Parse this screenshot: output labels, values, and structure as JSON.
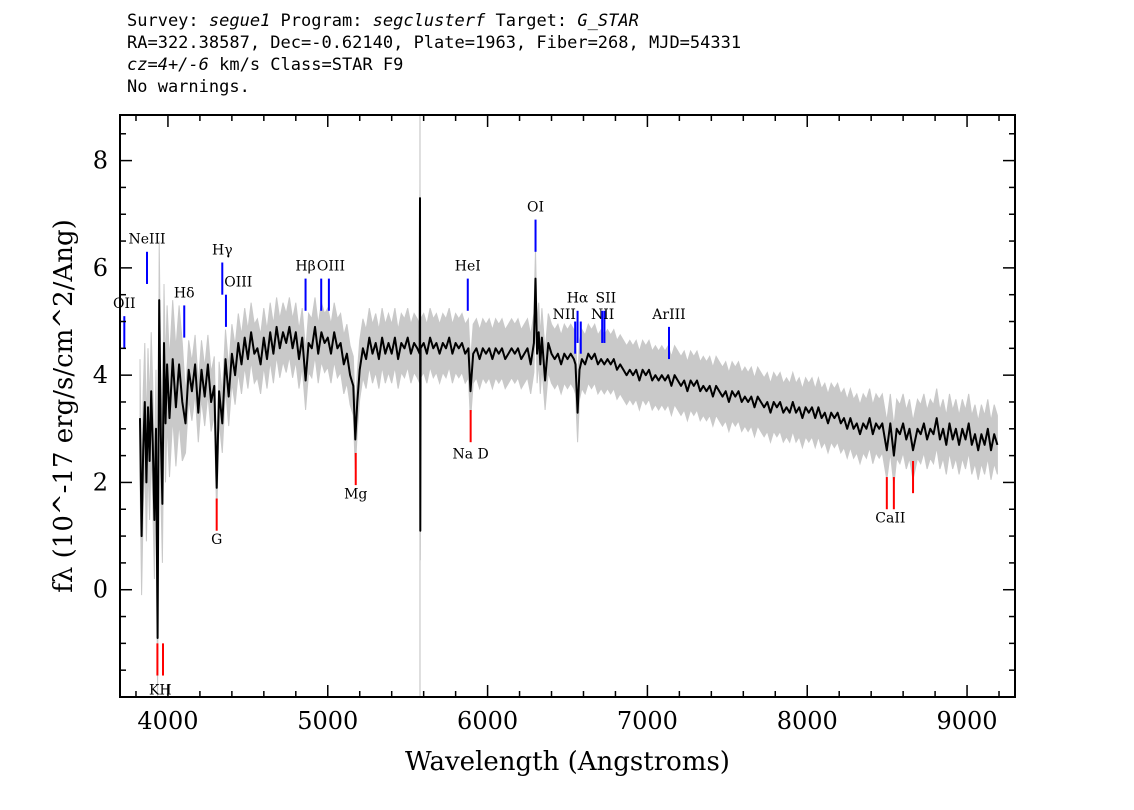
{
  "header": {
    "line1_prefix": "Survey: ",
    "survey": "segue1",
    "line1_mid": " Program: ",
    "program": "segclusterf",
    "line1_mid2": " Target: ",
    "target": "G_STAR",
    "line2": "RA=322.38587, Dec=-0.62140, Plate=1963, Fiber=268, MJD=54331",
    "line3_z": "cz=4+/-6",
    "line3_rest": " km/s Class=STAR F9",
    "line4": "No warnings."
  },
  "chart_data": {
    "type": "line",
    "xlabel": "Wavelength (Angstroms)",
    "ylabel": "fλ (10^-17 erg/s/cm^2/Ang)",
    "xlim": [
      3700,
      9300
    ],
    "ylim": [
      -2.0,
      8.85
    ],
    "x_ticks": [
      4000,
      5000,
      6000,
      7000,
      8000,
      9000
    ],
    "y_ticks": [
      0,
      2,
      4,
      6,
      8
    ],
    "x_tick_labels": [
      "4000",
      "5000",
      "6000",
      "7000",
      "8000",
      "9000"
    ],
    "y_tick_labels": [
      "0",
      "2",
      "4",
      "6",
      "8"
    ],
    "spectrum_color": "#000000",
    "error_color": "#c0c0c0",
    "emission_line_color": "#0000ff",
    "absorption_line_color": "#ff0000",
    "spectrum_points": [
      [
        3825,
        3.2
      ],
      [
        3835,
        1.0
      ],
      [
        3845,
        2.6
      ],
      [
        3855,
        3.5
      ],
      [
        3865,
        2.0
      ],
      [
        3875,
        3.4
      ],
      [
        3885,
        2.4
      ],
      [
        3895,
        3.7
      ],
      [
        3905,
        2.7
      ],
      [
        3915,
        1.3
      ],
      [
        3925,
        3.0
      ],
      [
        3935,
        -0.9
      ],
      [
        3945,
        5.4
      ],
      [
        3955,
        2.9
      ],
      [
        3965,
        1.6
      ],
      [
        3975,
        4.6
      ],
      [
        3985,
        3.1
      ],
      [
        3995,
        4.2
      ],
      [
        4010,
        3.2
      ],
      [
        4030,
        4.3
      ],
      [
        4050,
        3.4
      ],
      [
        4070,
        4.2
      ],
      [
        4090,
        3.5
      ],
      [
        4110,
        3.1
      ],
      [
        4130,
        4.1
      ],
      [
        4150,
        3.7
      ],
      [
        4170,
        4.2
      ],
      [
        4190,
        3.3
      ],
      [
        4210,
        4.1
      ],
      [
        4230,
        3.6
      ],
      [
        4250,
        4.2
      ],
      [
        4270,
        3.5
      ],
      [
        4290,
        3.8
      ],
      [
        4305,
        1.9
      ],
      [
        4320,
        3.7
      ],
      [
        4340,
        3.1
      ],
      [
        4360,
        4.3
      ],
      [
        4380,
        3.6
      ],
      [
        4400,
        4.4
      ],
      [
        4420,
        4.0
      ],
      [
        4440,
        4.6
      ],
      [
        4460,
        4.2
      ],
      [
        4480,
        4.7
      ],
      [
        4500,
        4.3
      ],
      [
        4520,
        4.8
      ],
      [
        4540,
        4.4
      ],
      [
        4560,
        4.5
      ],
      [
        4580,
        4.2
      ],
      [
        4600,
        4.7
      ],
      [
        4620,
        4.3
      ],
      [
        4640,
        4.8
      ],
      [
        4660,
        4.4
      ],
      [
        4680,
        4.9
      ],
      [
        4700,
        4.5
      ],
      [
        4720,
        4.8
      ],
      [
        4740,
        4.6
      ],
      [
        4760,
        4.9
      ],
      [
        4780,
        4.5
      ],
      [
        4800,
        4.8
      ],
      [
        4820,
        4.3
      ],
      [
        4840,
        4.7
      ],
      [
        4861,
        3.9
      ],
      [
        4880,
        4.6
      ],
      [
        4900,
        4.5
      ],
      [
        4920,
        4.9
      ],
      [
        4940,
        4.4
      ],
      [
        4960,
        4.8
      ],
      [
        4980,
        4.6
      ],
      [
        5000,
        4.7
      ],
      [
        5020,
        4.4
      ],
      [
        5040,
        4.8
      ],
      [
        5060,
        4.5
      ],
      [
        5080,
        4.6
      ],
      [
        5100,
        4.2
      ],
      [
        5120,
        4.4
      ],
      [
        5140,
        4.0
      ],
      [
        5160,
        3.8
      ],
      [
        5172,
        2.8
      ],
      [
        5185,
        3.5
      ],
      [
        5200,
        4.1
      ],
      [
        5220,
        4.5
      ],
      [
        5240,
        4.3
      ],
      [
        5260,
        4.7
      ],
      [
        5280,
        4.4
      ],
      [
        5300,
        4.6
      ],
      [
        5320,
        4.3
      ],
      [
        5340,
        4.7
      ],
      [
        5360,
        4.4
      ],
      [
        5380,
        4.6
      ],
      [
        5400,
        4.4
      ],
      [
        5420,
        4.7
      ],
      [
        5440,
        4.3
      ],
      [
        5460,
        4.6
      ],
      [
        5480,
        4.5
      ],
      [
        5500,
        4.7
      ],
      [
        5520,
        4.4
      ],
      [
        5540,
        4.6
      ],
      [
        5560,
        4.5
      ],
      [
        5575,
        4.4
      ],
      [
        5577,
        7.3
      ],
      [
        5579,
        1.1
      ],
      [
        5581,
        4.5
      ],
      [
        5600,
        4.6
      ],
      [
        5620,
        4.4
      ],
      [
        5640,
        4.7
      ],
      [
        5660,
        4.5
      ],
      [
        5680,
        4.6
      ],
      [
        5700,
        4.4
      ],
      [
        5720,
        4.6
      ],
      [
        5740,
        4.5
      ],
      [
        5760,
        4.7
      ],
      [
        5780,
        4.4
      ],
      [
        5800,
        4.6
      ],
      [
        5820,
        4.5
      ],
      [
        5840,
        4.6
      ],
      [
        5860,
        4.4
      ],
      [
        5880,
        4.5
      ],
      [
        5893,
        3.7
      ],
      [
        5910,
        4.4
      ],
      [
        5930,
        4.5
      ],
      [
        5950,
        4.3
      ],
      [
        5970,
        4.5
      ],
      [
        5990,
        4.4
      ],
      [
        6010,
        4.5
      ],
      [
        6030,
        4.3
      ],
      [
        6050,
        4.5
      ],
      [
        6070,
        4.4
      ],
      [
        6090,
        4.5
      ],
      [
        6110,
        4.3
      ],
      [
        6130,
        4.4
      ],
      [
        6150,
        4.5
      ],
      [
        6170,
        4.4
      ],
      [
        6190,
        4.5
      ],
      [
        6210,
        4.3
      ],
      [
        6230,
        4.4
      ],
      [
        6250,
        4.5
      ],
      [
        6270,
        4.2
      ],
      [
        6290,
        4.6
      ],
      [
        6300,
        5.8
      ],
      [
        6310,
        4.4
      ],
      [
        6320,
        4.8
      ],
      [
        6330,
        4.2
      ],
      [
        6340,
        4.7
      ],
      [
        6360,
        3.9
      ],
      [
        6380,
        4.6
      ],
      [
        6400,
        4.4
      ],
      [
        6420,
        4.3
      ],
      [
        6440,
        4.4
      ],
      [
        6460,
        4.2
      ],
      [
        6480,
        4.4
      ],
      [
        6500,
        4.3
      ],
      [
        6520,
        4.4
      ],
      [
        6540,
        4.3
      ],
      [
        6550,
        4.2
      ],
      [
        6563,
        3.3
      ],
      [
        6575,
        4.1
      ],
      [
        6590,
        4.3
      ],
      [
        6610,
        4.2
      ],
      [
        6630,
        4.4
      ],
      [
        6650,
        4.3
      ],
      [
        6670,
        4.4
      ],
      [
        6690,
        4.2
      ],
      [
        6710,
        4.3
      ],
      [
        6730,
        4.2
      ],
      [
        6750,
        4.3
      ],
      [
        6770,
        4.2
      ],
      [
        6790,
        4.3
      ],
      [
        6810,
        4.1
      ],
      [
        6830,
        4.2
      ],
      [
        6850,
        4.1
      ],
      [
        6870,
        4.0
      ],
      [
        6890,
        4.1
      ],
      [
        6910,
        4.0
      ],
      [
        6930,
        4.1
      ],
      [
        6950,
        3.9
      ],
      [
        6970,
        4.1
      ],
      [
        6990,
        4.0
      ],
      [
        7010,
        4.1
      ],
      [
        7030,
        3.9
      ],
      [
        7050,
        4.0
      ],
      [
        7070,
        3.9
      ],
      [
        7090,
        4.0
      ],
      [
        7110,
        3.9
      ],
      [
        7130,
        4.0
      ],
      [
        7150,
        3.8
      ],
      [
        7170,
        4.0
      ],
      [
        7190,
        3.9
      ],
      [
        7210,
        3.8
      ],
      [
        7230,
        3.9
      ],
      [
        7250,
        3.7
      ],
      [
        7270,
        3.9
      ],
      [
        7290,
        3.8
      ],
      [
        7310,
        3.9
      ],
      [
        7330,
        3.7
      ],
      [
        7350,
        3.8
      ],
      [
        7370,
        3.7
      ],
      [
        7390,
        3.8
      ],
      [
        7410,
        3.6
      ],
      [
        7430,
        3.8
      ],
      [
        7450,
        3.7
      ],
      [
        7470,
        3.6
      ],
      [
        7490,
        3.7
      ],
      [
        7510,
        3.5
      ],
      [
        7530,
        3.7
      ],
      [
        7550,
        3.6
      ],
      [
        7570,
        3.7
      ],
      [
        7590,
        3.5
      ],
      [
        7610,
        3.6
      ],
      [
        7630,
        3.5
      ],
      [
        7650,
        3.6
      ],
      [
        7670,
        3.4
      ],
      [
        7690,
        3.6
      ],
      [
        7710,
        3.5
      ],
      [
        7730,
        3.4
      ],
      [
        7750,
        3.5
      ],
      [
        7770,
        3.3
      ],
      [
        7790,
        3.5
      ],
      [
        7810,
        3.4
      ],
      [
        7830,
        3.5
      ],
      [
        7850,
        3.3
      ],
      [
        7870,
        3.4
      ],
      [
        7890,
        3.3
      ],
      [
        7910,
        3.5
      ],
      [
        7930,
        3.3
      ],
      [
        7950,
        3.4
      ],
      [
        7970,
        3.2
      ],
      [
        7990,
        3.4
      ],
      [
        8010,
        3.3
      ],
      [
        8030,
        3.4
      ],
      [
        8050,
        3.2
      ],
      [
        8070,
        3.4
      ],
      [
        8090,
        3.2
      ],
      [
        8110,
        3.3
      ],
      [
        8130,
        3.1
      ],
      [
        8150,
        3.3
      ],
      [
        8170,
        3.2
      ],
      [
        8190,
        3.3
      ],
      [
        8210,
        3.1
      ],
      [
        8230,
        3.2
      ],
      [
        8250,
        3.0
      ],
      [
        8270,
        3.2
      ],
      [
        8290,
        3.0
      ],
      [
        8310,
        3.1
      ],
      [
        8330,
        2.9
      ],
      [
        8350,
        3.1
      ],
      [
        8370,
        3.0
      ],
      [
        8390,
        3.2
      ],
      [
        8410,
        2.9
      ],
      [
        8430,
        3.1
      ],
      [
        8450,
        3.0
      ],
      [
        8470,
        3.1
      ],
      [
        8498,
        2.6
      ],
      [
        8520,
        3.1
      ],
      [
        8542,
        2.5
      ],
      [
        8560,
        3.0
      ],
      [
        8580,
        2.9
      ],
      [
        8600,
        3.1
      ],
      [
        8620,
        2.8
      ],
      [
        8640,
        3.0
      ],
      [
        8662,
        2.6
      ],
      [
        8690,
        3.0
      ],
      [
        8710,
        2.9
      ],
      [
        8730,
        3.1
      ],
      [
        8750,
        2.8
      ],
      [
        8770,
        3.0
      ],
      [
        8790,
        2.9
      ],
      [
        8810,
        3.2
      ],
      [
        8830,
        2.8
      ],
      [
        8850,
        3.0
      ],
      [
        8870,
        2.7
      ],
      [
        8890,
        3.1
      ],
      [
        8910,
        2.8
      ],
      [
        8930,
        3.0
      ],
      [
        8950,
        2.7
      ],
      [
        8970,
        3.0
      ],
      [
        8990,
        2.8
      ],
      [
        9010,
        3.1
      ],
      [
        9030,
        2.7
      ],
      [
        9050,
        2.9
      ],
      [
        9070,
        2.6
      ],
      [
        9090,
        2.9
      ],
      [
        9110,
        2.7
      ],
      [
        9130,
        3.0
      ],
      [
        9150,
        2.6
      ],
      [
        9170,
        2.9
      ],
      [
        9190,
        2.7
      ]
    ],
    "emission_lines": [
      {
        "label": "OII",
        "x": 3727,
        "y0": 4.5,
        "y1": 5.1
      },
      {
        "label": "NeIII",
        "x": 3869,
        "y0": 5.7,
        "y1": 6.3
      },
      {
        "label": "Hδ",
        "x": 4102,
        "y0": 4.7,
        "y1": 5.3
      },
      {
        "label": "Hγ",
        "x": 4340,
        "y0": 5.5,
        "y1": 6.1
      },
      {
        "label": "OIII",
        "x": 4363,
        "y0": 4.9,
        "y1": 5.5
      },
      {
        "label": "Hβ",
        "x": 4861,
        "y0": 5.2,
        "y1": 5.8
      },
      {
        "label": "OIII",
        "x": 4959,
        "y0": 5.2,
        "y1": 5.8
      },
      {
        "label": "OIII",
        "x": 5007,
        "y0": 5.2,
        "y1": 5.8
      },
      {
        "label": "HeI",
        "x": 5876,
        "y0": 5.2,
        "y1": 5.8
      },
      {
        "label": "OI",
        "x": 6300,
        "y0": 6.3,
        "y1": 6.9
      },
      {
        "label": "NII",
        "x": 6548,
        "y0": 4.4,
        "y1": 5.0
      },
      {
        "label": "Hα",
        "x": 6563,
        "y0": 4.6,
        "y1": 5.2
      },
      {
        "label": "NII",
        "x": 6583,
        "y0": 4.4,
        "y1": 5.0
      },
      {
        "label": "SII",
        "x": 6717,
        "y0": 4.6,
        "y1": 5.2
      },
      {
        "label": "SII",
        "x": 6731,
        "y0": 4.6,
        "y1": 5.2
      },
      {
        "label": "ArIII",
        "x": 7135,
        "y0": 4.3,
        "y1": 4.9
      }
    ],
    "emission_label_positions": [
      {
        "label": "OII",
        "x": 3727,
        "y": 5.25
      },
      {
        "label": "NeIII",
        "x": 3869,
        "y": 6.45
      },
      {
        "label": "Hδ",
        "x": 4102,
        "y": 5.45
      },
      {
        "label": "Hγ",
        "x": 4340,
        "y": 6.25
      },
      {
        "label": "OIII",
        "x": 4440,
        "y": 5.65
      },
      {
        "label": "Hβ",
        "x": 4861,
        "y": 5.95
      },
      {
        "label": "OIII",
        "x": 5020,
        "y": 5.95
      },
      {
        "label": "HeI",
        "x": 5876,
        "y": 5.95
      },
      {
        "label": "OI",
        "x": 6300,
        "y": 7.05
      },
      {
        "label": "NII",
        "x": 6480,
        "y": 5.05
      },
      {
        "label": "Hα",
        "x": 6563,
        "y": 5.35
      },
      {
        "label": "NII",
        "x": 6720,
        "y": 5.05
      },
      {
        "label": "SII",
        "x": 6740,
        "y": 5.35
      },
      {
        "label": "ArIII",
        "x": 7135,
        "y": 5.05
      }
    ],
    "absorption_lines": [
      {
        "label": "KH",
        "x": 3934,
        "y0": -1.6,
        "y1": -1.0
      },
      {
        "label": "",
        "x": 3969,
        "y0": -1.6,
        "y1": -1.0
      },
      {
        "label": "G",
        "x": 4305,
        "y0": 1.1,
        "y1": 1.7
      },
      {
        "label": "Mg",
        "x": 5175,
        "y0": 1.95,
        "y1": 2.55
      },
      {
        "label": "Na D",
        "x": 5894,
        "y0": 2.75,
        "y1": 3.35
      },
      {
        "label": "CaII",
        "x": 8498,
        "y0": 1.5,
        "y1": 2.1
      },
      {
        "label": "",
        "x": 8542,
        "y0": 1.5,
        "y1": 2.1
      },
      {
        "label": "",
        "x": 8662,
        "y0": 1.8,
        "y1": 2.4
      }
    ],
    "absorption_label_positions": [
      {
        "label": "KH",
        "x": 3952,
        "y": -1.95
      },
      {
        "label": "G",
        "x": 4305,
        "y": 0.85
      },
      {
        "label": "Mg",
        "x": 5175,
        "y": 1.7
      },
      {
        "label": "Na D",
        "x": 5894,
        "y": 2.45
      },
      {
        "label": "CaII",
        "x": 8520,
        "y": 1.25
      }
    ]
  }
}
